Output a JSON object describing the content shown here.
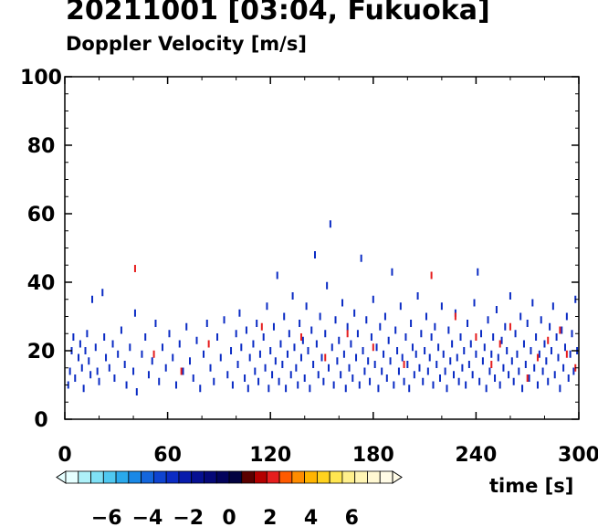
{
  "title": "20211001 [03:04, Fukuoka]",
  "subtitle": "Doppler Velocity [m/s]",
  "chart_data": {
    "type": "scatter",
    "xlabel": "time [s]",
    "ylabel": "",
    "xlim": [
      0,
      300
    ],
    "ylim": [
      0,
      100
    ],
    "xticks": [
      "0",
      "60",
      "120",
      "180",
      "240",
      "300"
    ],
    "yticks": [
      "0",
      "20",
      "40",
      "60",
      "80",
      "100"
    ],
    "grid": false,
    "colorbar": {
      "label": "Doppler Velocity [m/s]",
      "range": [
        -8,
        8
      ],
      "tick_labels": [
        "−6",
        "−4",
        "−2",
        "0",
        "2",
        "4",
        "6"
      ],
      "tick_values": [
        -6,
        -4,
        -2,
        0,
        2,
        4,
        6
      ],
      "colors": [
        "#e6ffff",
        "#aef1f9",
        "#7fe0f5",
        "#4fc8f0",
        "#2aa9ec",
        "#1a88e6",
        "#1466dc",
        "#0f44d0",
        "#0b2cc4",
        "#081cac",
        "#061092",
        "#050878",
        "#03035c",
        "#020240",
        "#5a0000",
        "#b40000",
        "#e61e1e",
        "#ff5a00",
        "#ff8c00",
        "#ffb400",
        "#ffd21e",
        "#ffe650",
        "#fff08c",
        "#fff5b4",
        "#fff8d2",
        "#fffbe6"
      ]
    },
    "series": [
      {
        "values": [
          [
            2,
            10
          ],
          [
            3,
            14
          ],
          [
            4,
            20
          ],
          [
            5,
            24
          ],
          [
            6,
            12
          ],
          [
            8,
            18
          ],
          [
            9,
            22
          ],
          [
            10,
            15
          ],
          [
            11,
            9
          ],
          [
            12,
            20
          ],
          [
            13,
            25
          ],
          [
            14,
            17
          ],
          [
            15,
            13
          ],
          [
            16,
            35
          ],
          [
            18,
            21
          ],
          [
            19,
            14
          ],
          [
            20,
            11
          ],
          [
            22,
            37
          ],
          [
            23,
            24
          ],
          [
            24,
            18
          ],
          [
            26,
            15
          ],
          [
            28,
            22
          ],
          [
            29,
            12
          ],
          [
            31,
            19
          ],
          [
            33,
            26
          ],
          [
            35,
            16
          ],
          [
            36,
            10
          ],
          [
            38,
            21
          ],
          [
            40,
            14
          ],
          [
            41,
            31
          ],
          [
            42,
            8
          ],
          [
            45,
            19
          ],
          [
            47,
            24
          ],
          [
            49,
            13
          ],
          [
            51,
            17
          ],
          [
            53,
            28
          ],
          [
            55,
            11
          ],
          [
            57,
            21
          ],
          [
            59,
            15
          ],
          [
            61,
            25
          ],
          [
            63,
            18
          ],
          [
            65,
            10
          ],
          [
            67,
            22
          ],
          [
            69,
            14
          ],
          [
            71,
            27
          ],
          [
            73,
            17
          ],
          [
            75,
            12
          ],
          [
            77,
            23
          ],
          [
            79,
            9
          ],
          [
            81,
            19
          ],
          [
            83,
            28
          ],
          [
            85,
            15
          ],
          [
            87,
            11
          ],
          [
            89,
            24
          ],
          [
            91,
            18
          ],
          [
            93,
            29
          ],
          [
            95,
            13
          ],
          [
            97,
            20
          ],
          [
            98,
            10
          ],
          [
            100,
            25
          ],
          [
            101,
            16
          ],
          [
            102,
            31
          ],
          [
            103,
            21
          ],
          [
            105,
            12
          ],
          [
            106,
            26
          ],
          [
            107,
            9
          ],
          [
            108,
            18
          ],
          [
            110,
            22
          ],
          [
            111,
            14
          ],
          [
            112,
            28
          ],
          [
            113,
            11
          ],
          [
            114,
            19
          ],
          [
            116,
            24
          ],
          [
            117,
            15
          ],
          [
            118,
            33
          ],
          [
            119,
            9
          ],
          [
            120,
            20
          ],
          [
            121,
            13
          ],
          [
            122,
            27
          ],
          [
            123,
            17
          ],
          [
            124,
            42
          ],
          [
            125,
            11
          ],
          [
            126,
            22
          ],
          [
            127,
            16
          ],
          [
            128,
            30
          ],
          [
            129,
            9
          ],
          [
            130,
            19
          ],
          [
            131,
            25
          ],
          [
            132,
            13
          ],
          [
            133,
            36
          ],
          [
            134,
            21
          ],
          [
            135,
            15
          ],
          [
            136,
            10
          ],
          [
            137,
            28
          ],
          [
            138,
            18
          ],
          [
            139,
            23
          ],
          [
            140,
            12
          ],
          [
            141,
            33
          ],
          [
            142,
            20
          ],
          [
            143,
            9
          ],
          [
            144,
            26
          ],
          [
            145,
            16
          ],
          [
            146,
            48
          ],
          [
            147,
            22
          ],
          [
            148,
            13
          ],
          [
            149,
            30
          ],
          [
            150,
            18
          ],
          [
            151,
            11
          ],
          [
            152,
            25
          ],
          [
            153,
            39
          ],
          [
            154,
            15
          ],
          [
            155,
            57
          ],
          [
            156,
            21
          ],
          [
            157,
            10
          ],
          [
            158,
            29
          ],
          [
            159,
            17
          ],
          [
            160,
            23
          ],
          [
            161,
            13
          ],
          [
            162,
            34
          ],
          [
            163,
            19
          ],
          [
            164,
            9
          ],
          [
            165,
            27
          ],
          [
            166,
            15
          ],
          [
            167,
            22
          ],
          [
            168,
            12
          ],
          [
            169,
            31
          ],
          [
            170,
            18
          ],
          [
            171,
            25
          ],
          [
            172,
            10
          ],
          [
            173,
            47
          ],
          [
            174,
            20
          ],
          [
            175,
            14
          ],
          [
            176,
            29
          ],
          [
            177,
            17
          ],
          [
            178,
            11
          ],
          [
            179,
            24
          ],
          [
            180,
            35
          ],
          [
            181,
            16
          ],
          [
            182,
            21
          ],
          [
            183,
            9
          ],
          [
            184,
            27
          ],
          [
            185,
            14
          ],
          [
            186,
            19
          ],
          [
            187,
            30
          ],
          [
            188,
            12
          ],
          [
            189,
            23
          ],
          [
            190,
            17
          ],
          [
            191,
            43
          ],
          [
            192,
            10
          ],
          [
            193,
            26
          ],
          [
            194,
            20
          ],
          [
            195,
            14
          ],
          [
            196,
            33
          ],
          [
            197,
            18
          ],
          [
            198,
            11
          ],
          [
            199,
            24
          ],
          [
            200,
            16
          ],
          [
            201,
            9
          ],
          [
            202,
            28
          ],
          [
            203,
            21
          ],
          [
            204,
            13
          ],
          [
            205,
            19
          ],
          [
            206,
            36
          ],
          [
            207,
            15
          ],
          [
            208,
            25
          ],
          [
            209,
            11
          ],
          [
            210,
            20
          ],
          [
            211,
            30
          ],
          [
            212,
            14
          ],
          [
            213,
            18
          ],
          [
            214,
            24
          ],
          [
            215,
            10
          ],
          [
            216,
            27
          ],
          [
            217,
            16
          ],
          [
            218,
            21
          ],
          [
            219,
            12
          ],
          [
            220,
            33
          ],
          [
            221,
            19
          ],
          [
            222,
            14
          ],
          [
            223,
            9
          ],
          [
            224,
            26
          ],
          [
            225,
            17
          ],
          [
            226,
            22
          ],
          [
            227,
            13
          ],
          [
            228,
            31
          ],
          [
            229,
            18
          ],
          [
            230,
            11
          ],
          [
            231,
            24
          ],
          [
            232,
            15
          ],
          [
            233,
            20
          ],
          [
            234,
            10
          ],
          [
            235,
            28
          ],
          [
            236,
            16
          ],
          [
            237,
            22
          ],
          [
            238,
            13
          ],
          [
            239,
            34
          ],
          [
            240,
            19
          ],
          [
            241,
            43
          ],
          [
            242,
            11
          ],
          [
            243,
            25
          ],
          [
            244,
            17
          ],
          [
            245,
            21
          ],
          [
            246,
            9
          ],
          [
            247,
            29
          ],
          [
            248,
            14
          ],
          [
            249,
            19
          ],
          [
            250,
            24
          ],
          [
            251,
            12
          ],
          [
            252,
            32
          ],
          [
            253,
            18
          ],
          [
            254,
            10
          ],
          [
            255,
            23
          ],
          [
            256,
            15
          ],
          [
            257,
            27
          ],
          [
            258,
            20
          ],
          [
            259,
            13
          ],
          [
            260,
            36
          ],
          [
            261,
            17
          ],
          [
            262,
            11
          ],
          [
            263,
            25
          ],
          [
            264,
            19
          ],
          [
            265,
            14
          ],
          [
            266,
            30
          ],
          [
            267,
            9
          ],
          [
            268,
            22
          ],
          [
            269,
            16
          ],
          [
            270,
            28
          ],
          [
            271,
            12
          ],
          [
            272,
            20
          ],
          [
            273,
            34
          ],
          [
            274,
            15
          ],
          [
            275,
            24
          ],
          [
            276,
            10
          ],
          [
            277,
            19
          ],
          [
            278,
            29
          ],
          [
            279,
            14
          ],
          [
            280,
            22
          ],
          [
            281,
            17
          ],
          [
            282,
            11
          ],
          [
            283,
            27
          ],
          [
            284,
            20
          ],
          [
            285,
            33
          ],
          [
            286,
            13
          ],
          [
            287,
            24
          ],
          [
            288,
            18
          ],
          [
            289,
            9
          ],
          [
            290,
            26
          ],
          [
            291,
            15
          ],
          [
            292,
            21
          ],
          [
            293,
            30
          ],
          [
            294,
            12
          ],
          [
            295,
            19
          ],
          [
            296,
            25
          ],
          [
            297,
            14
          ],
          [
            298,
            35
          ],
          [
            299,
            20
          ]
        ],
        "velocity": -3
      },
      {
        "values": [
          [
            41,
            44
          ],
          [
            52,
            19
          ],
          [
            68,
            14
          ],
          [
            84,
            22
          ],
          [
            115,
            27
          ],
          [
            138,
            24
          ],
          [
            152,
            18
          ],
          [
            165,
            25
          ],
          [
            180,
            21
          ],
          [
            198,
            16
          ],
          [
            214,
            42
          ],
          [
            228,
            30
          ],
          [
            240,
            24
          ],
          [
            249,
            16
          ],
          [
            254,
            22
          ],
          [
            260,
            27
          ],
          [
            270,
            12
          ],
          [
            276,
            18
          ],
          [
            282,
            23
          ],
          [
            289,
            26
          ],
          [
            293,
            19
          ],
          [
            298,
            15
          ]
        ],
        "velocity": 2
      }
    ]
  }
}
